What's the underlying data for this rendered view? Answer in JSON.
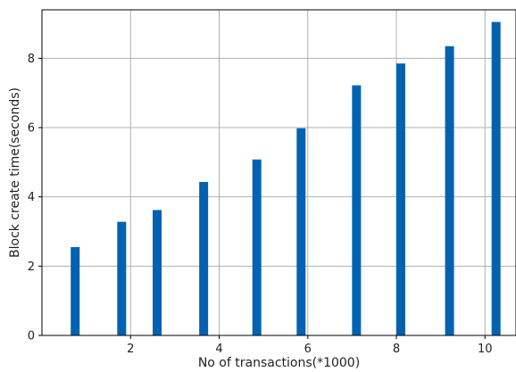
{
  "chart_data": {
    "type": "bar",
    "title": "",
    "xlabel": "No of transactions(*1000)",
    "ylabel": "Block create time(seconds)",
    "xlim": [
      0,
      10.7
    ],
    "ylim": [
      0,
      9.4
    ],
    "xticks": [
      2,
      4,
      6,
      8,
      10
    ],
    "yticks": [
      0,
      2,
      4,
      6,
      8
    ],
    "grid": true,
    "bar_color": "#0062b0",
    "x": [
      0.75,
      1.8,
      2.6,
      3.65,
      4.85,
      5.85,
      7.1,
      8.1,
      9.2,
      10.25
    ],
    "values": [
      2.55,
      3.28,
      3.62,
      4.43,
      5.08,
      5.98,
      7.22,
      7.85,
      8.35,
      9.05
    ]
  }
}
